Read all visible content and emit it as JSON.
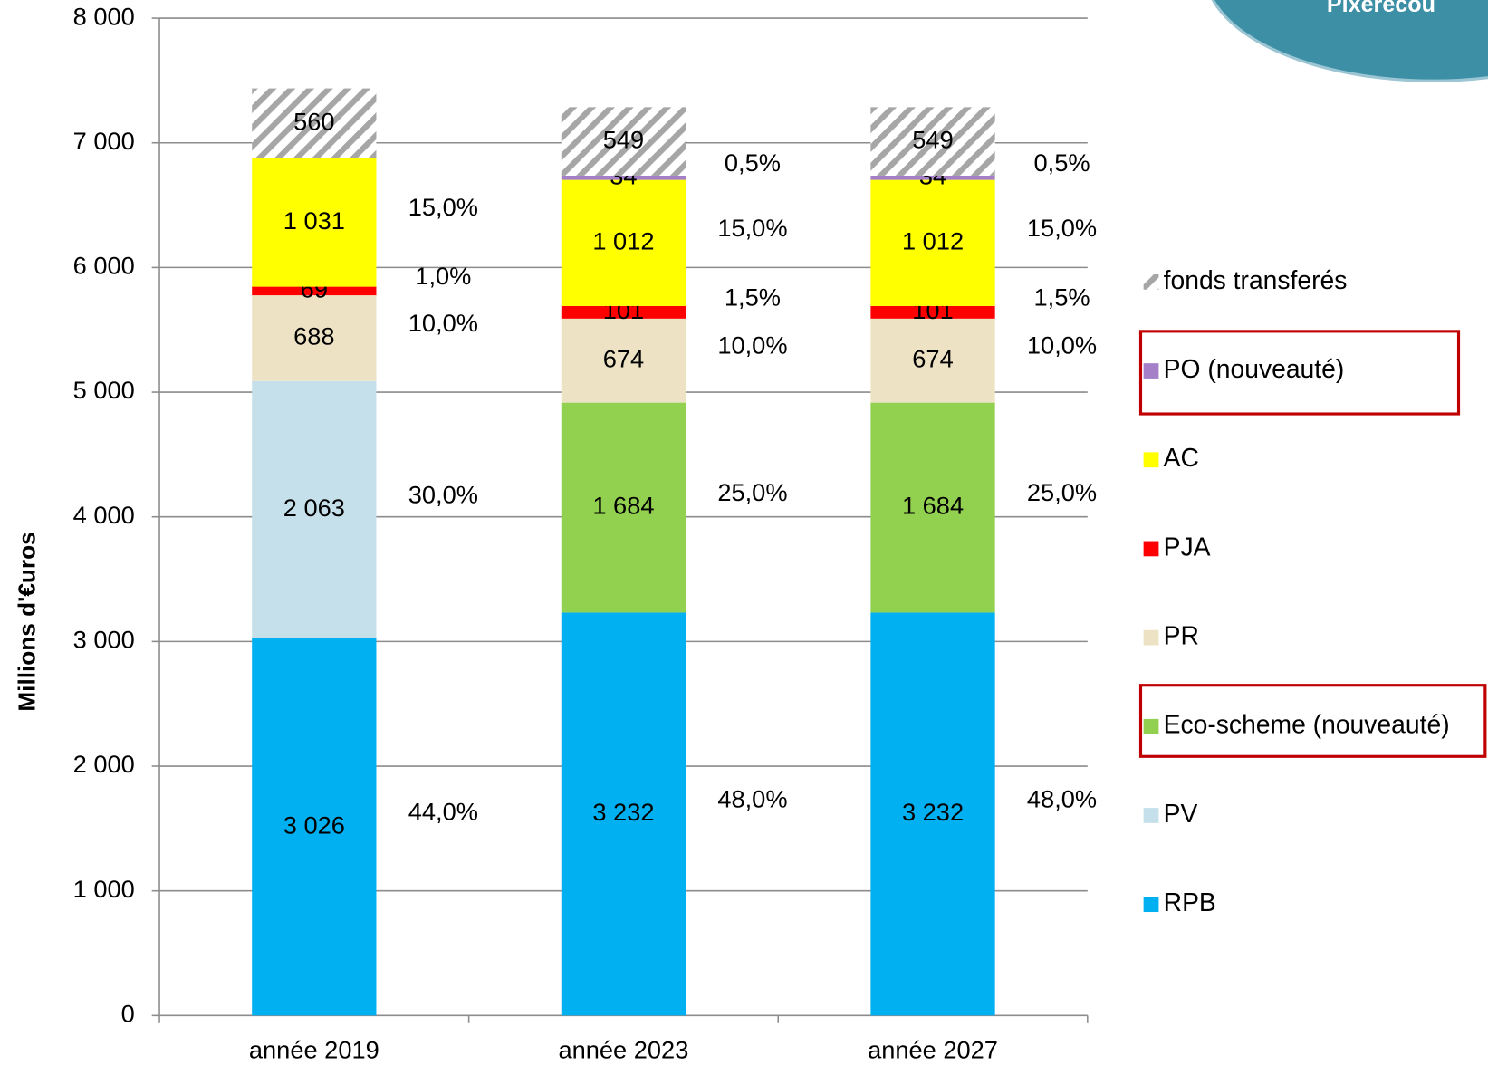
{
  "chart_data": {
    "type": "stacked_bar",
    "watermark": "Pixerécou",
    "y_label": "Millions d'€uros",
    "categories": [
      "année 2019",
      "année 2023",
      "année 2027"
    ],
    "ylim": [
      0,
      8000
    ],
    "yticks": [
      0,
      {
        "value": 1000,
        "label": "1 000"
      },
      {
        "value": 2000,
        "label": "2 000"
      },
      {
        "value": 3000,
        "label": "3 000"
      },
      {
        "value": 4000,
        "label": "4 000"
      },
      {
        "value": 5000,
        "label": "5 000"
      },
      {
        "value": 6000,
        "label": "6 000"
      },
      {
        "value": 7000,
        "label": "7 000"
      },
      {
        "value": 8000,
        "label": "8 000"
      }
    ],
    "grid": true,
    "legend": "right",
    "series": [
      {
        "name": "RPB",
        "color": "#00b0f0",
        "values": [
          3026,
          3232,
          3232
        ],
        "value_labels": [
          "3 026",
          "3 232",
          "3 232"
        ],
        "shares": [
          44,
          48,
          48
        ],
        "share_labels": [
          "44,0%",
          "48,0%",
          "48,0%"
        ]
      },
      {
        "name": "PV",
        "color": "#c5e0ea",
        "values": [
          2063,
          null,
          null
        ],
        "value_labels": [
          "2 063",
          null,
          null
        ],
        "shares": [
          30,
          null,
          null
        ],
        "share_labels": [
          "30,0%",
          null,
          null
        ]
      },
      {
        "name": "Eco-scheme (nouveauté)",
        "color": "#92d050",
        "values": [
          null,
          1684,
          1684
        ],
        "value_labels": [
          null,
          "1 684",
          "1 684"
        ],
        "shares": [
          null,
          25,
          25
        ],
        "share_labels": [
          null,
          "25,0%",
          "25,0%"
        ]
      },
      {
        "name": "PR",
        "color": "#ede3c4",
        "values": [
          688,
          674,
          674
        ],
        "shares": [
          10,
          10,
          10
        ],
        "share_labels": [
          "10,0%",
          "10,0%",
          "10,0%"
        ]
      },
      {
        "name": "PJA",
        "color": "#ff0000",
        "values": [
          69,
          101,
          101
        ],
        "shares": [
          1,
          1.5,
          1.5
        ],
        "share_labels": [
          "1,0%",
          "1,5%",
          "1,5%"
        ]
      },
      {
        "name": "AC",
        "color": "#ffff00",
        "values": [
          1031,
          1012,
          1012
        ],
        "value_labels": [
          "1 031",
          "1 012",
          "1 012"
        ],
        "shares": [
          15,
          15,
          15
        ],
        "share_labels": [
          "15,0%",
          "15,0%",
          "15,0%"
        ]
      },
      {
        "name": "PO (nouveauté)",
        "color": "#a57fc7",
        "values": [
          null,
          34,
          34
        ],
        "shares": [
          null,
          0.5,
          0.5
        ],
        "share_labels": [
          null,
          "0,5%",
          "0,5%"
        ]
      },
      {
        "name": "fonds transferés",
        "color": "#a6a6a6",
        "hatch": true,
        "values": [
          560,
          549,
          549
        ]
      }
    ]
  }
}
